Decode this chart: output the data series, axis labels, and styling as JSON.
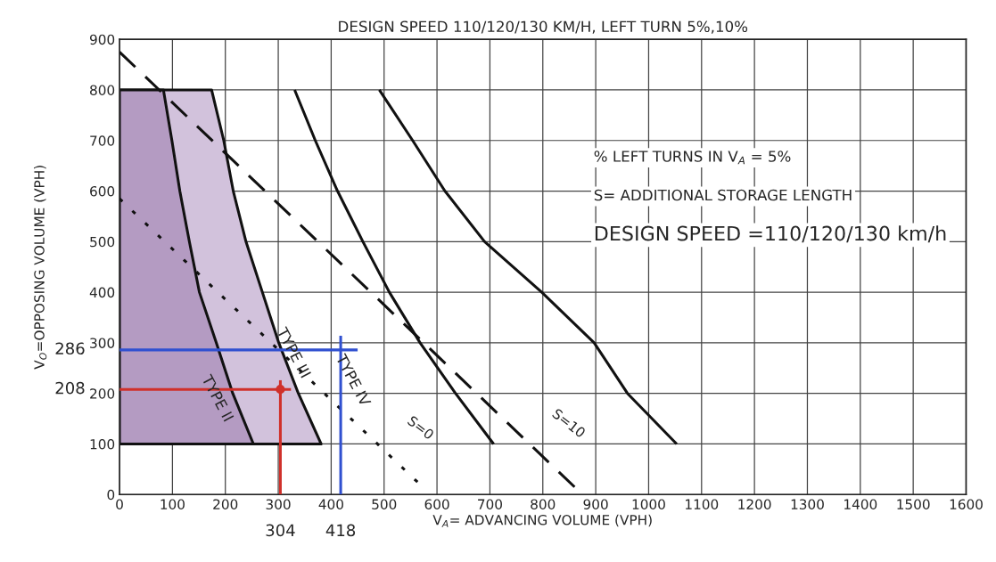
{
  "chart_data": {
    "type": "line",
    "title": "DESIGN SPEED 110/120/130 KM/H, LEFT TURN 5%,10%",
    "xlabel": "V$_{A}$= ADVANCING VOLUME (VPH)",
    "ylabel": "V$_{O}$=OPPOSING VOLUME (VPH)",
    "xlim": [
      0,
      1600
    ],
    "ylim": [
      0,
      900
    ],
    "xticks": [
      0,
      100,
      200,
      300,
      400,
      500,
      600,
      700,
      800,
      900,
      1000,
      1100,
      1200,
      1300,
      1400,
      1500,
      1600
    ],
    "yticks": [
      0,
      100,
      200,
      300,
      400,
      500,
      600,
      700,
      800,
      900
    ],
    "grid": true,
    "series": [
      {
        "type": "area",
        "color": "#b49bc2",
        "x": [
          0,
          83,
          99,
          114,
          132,
          151,
          183,
          214,
          253,
          0
        ],
        "values": [
          800,
          800,
          700,
          600,
          500,
          400,
          300,
          200,
          100,
          100
        ]
      },
      {
        "type": "area",
        "color": "#d2c2dc",
        "x": [
          0,
          174,
          197,
          215,
          239,
          270,
          301,
          338,
          381,
          0
        ],
        "values": [
          800,
          800,
          700,
          600,
          500,
          400,
          300,
          200,
          100,
          100
        ]
      },
      {
        "color": "#111111",
        "line_style": "solid",
        "x": [
          331,
          370,
          412,
          460,
          510,
          568,
          635,
          707
        ],
        "values": [
          800,
          700,
          600,
          500,
          400,
          300,
          200,
          100
        ]
      },
      {
        "color": "#111111",
        "line_style": "solid",
        "x": [
          491,
          554,
          615,
          690,
          798,
          897,
          960,
          1053
        ],
        "values": [
          800,
          700,
          600,
          500,
          400,
          300,
          200,
          100
        ]
      },
      {
        "color": "#111111",
        "line_style": "dashed",
        "x": [
          0,
          860
        ],
        "values": [
          875,
          15
        ]
      },
      {
        "color": "#111111",
        "line_style": "dotted",
        "x": [
          0,
          568
        ],
        "values": [
          585,
          20
        ]
      },
      {
        "color": "#d0302a",
        "line_style": "solid",
        "x": [
          0,
          324
        ],
        "values": [
          208,
          208
        ]
      },
      {
        "color": "#d0302a",
        "line_style": "solid",
        "x": [
          304,
          304
        ],
        "values": [
          0,
          226
        ]
      },
      {
        "color": "#3050d0",
        "line_style": "solid",
        "x": [
          0,
          450
        ],
        "values": [
          286,
          286
        ]
      },
      {
        "color": "#3050d0",
        "line_style": "solid",
        "x": [
          418,
          418
        ],
        "values": [
          0,
          314
        ]
      },
      {
        "type": "scatter",
        "color": "#d0302a",
        "marker": "circle",
        "x": [
          304
        ],
        "values": [
          208
        ]
      }
    ],
    "annotations": [
      "TYPE II",
      "TYPE III",
      "TYPE IV",
      "S=0",
      "S=10",
      {
        "text": "286",
        "x": 0,
        "y": 286
      },
      {
        "text": "208",
        "x": 0,
        "y": 208
      },
      {
        "text": "304",
        "x": 304,
        "y": 0
      },
      {
        "text": "418",
        "x": 418,
        "y": 0
      },
      "% LEFT TURNS IN V$_{A}$ = 5%",
      "S= ADDITIONAL STORAGE LENGTH",
      "DESIGN SPEED =110/120/130 km/h"
    ]
  }
}
